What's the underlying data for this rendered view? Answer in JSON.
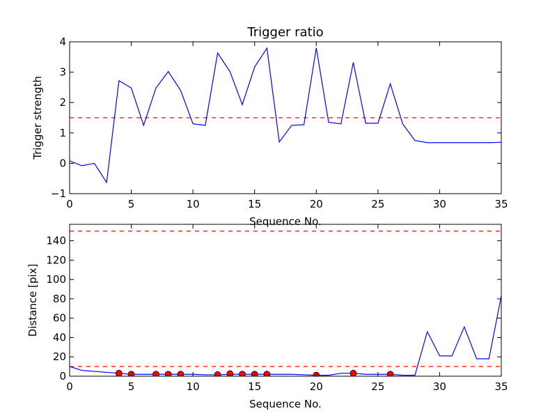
{
  "chart_data": [
    {
      "type": "line",
      "title": "Trigger ratio",
      "xlabel": "Sequence No.",
      "ylabel": "Trigger strength",
      "xlim": [
        0,
        35
      ],
      "ylim": [
        -1,
        4
      ],
      "xticks": [
        0,
        5,
        10,
        15,
        20,
        25,
        30,
        35
      ],
      "yticks": [
        -1,
        0,
        1,
        2,
        3,
        4
      ],
      "xtick_labels": [
        "0",
        "5",
        "10",
        "15",
        "20",
        "25",
        "30",
        "35"
      ],
      "ytick_labels": [
        "−1",
        "0",
        "1",
        "2",
        "3",
        "4"
      ],
      "grid": false,
      "series": [
        {
          "color": "#0000ff",
          "style": "solid",
          "x": [
            0,
            1,
            2,
            3,
            4,
            5,
            6,
            7,
            8,
            9,
            10,
            11,
            12,
            13,
            14,
            15,
            16,
            17,
            18,
            19,
            20,
            21,
            22,
            23,
            24,
            25,
            26,
            27,
            28,
            29,
            30,
            31,
            32,
            33,
            34,
            35
          ],
          "values": [
            0.08,
            -0.08,
            0.0,
            -0.63,
            2.72,
            2.48,
            1.25,
            2.48,
            3.02,
            2.4,
            1.3,
            1.25,
            3.63,
            3.02,
            1.93,
            3.17,
            3.79,
            0.7,
            1.25,
            1.27,
            3.8,
            1.35,
            1.3,
            3.32,
            1.32,
            1.32,
            2.62,
            1.3,
            0.75,
            0.68,
            0.68,
            0.68,
            0.68,
            0.68,
            0.68,
            0.69
          ]
        }
      ],
      "reference_lines": [
        {
          "y": 1.5,
          "color": "#ff0000",
          "style": "dashed"
        }
      ]
    },
    {
      "type": "line",
      "title": "",
      "xlabel": "Sequence No.",
      "ylabel": "Distance [pix]",
      "xlim": [
        0,
        35
      ],
      "ylim": [
        0,
        157
      ],
      "xticks": [
        0,
        5,
        10,
        15,
        20,
        25,
        30,
        35
      ],
      "yticks": [
        0,
        20,
        40,
        60,
        80,
        100,
        120,
        140
      ],
      "xtick_labels": [
        "0",
        "5",
        "10",
        "15",
        "20",
        "25",
        "30",
        "35"
      ],
      "ytick_labels": [
        "0",
        "20",
        "40",
        "60",
        "80",
        "100",
        "120",
        "140"
      ],
      "grid": false,
      "series": [
        {
          "color": "#0000ff",
          "style": "solid",
          "x": [
            0,
            1,
            2,
            3,
            4,
            5,
            6,
            7,
            8,
            9,
            10,
            11,
            12,
            13,
            14,
            15,
            16,
            17,
            18,
            19,
            20,
            21,
            22,
            23,
            24,
            25,
            26,
            27,
            28,
            29,
            30,
            31,
            32,
            33,
            34,
            35
          ],
          "values": [
            10,
            6,
            5,
            4,
            3,
            2,
            2,
            2,
            2,
            2,
            2,
            1.5,
            1.5,
            2,
            2,
            2,
            2,
            2,
            2,
            1.5,
            1,
            1,
            3,
            3,
            2,
            2,
            2,
            1,
            1,
            46,
            21,
            21,
            51,
            18,
            18,
            83
          ]
        },
        {
          "color": "#ff0000",
          "style": "markers",
          "x": [
            4,
            5,
            7,
            8,
            9,
            12,
            13,
            14,
            15,
            16,
            20,
            23,
            26
          ],
          "values": [
            3,
            2,
            2,
            2,
            2,
            1.5,
            2.5,
            2,
            2,
            2,
            1,
            3,
            2
          ]
        }
      ],
      "reference_lines": [
        {
          "y": 10,
          "color": "#ff0000",
          "style": "dashed"
        },
        {
          "y": 150,
          "color": "#ff0000",
          "style": "dashed"
        }
      ]
    }
  ]
}
